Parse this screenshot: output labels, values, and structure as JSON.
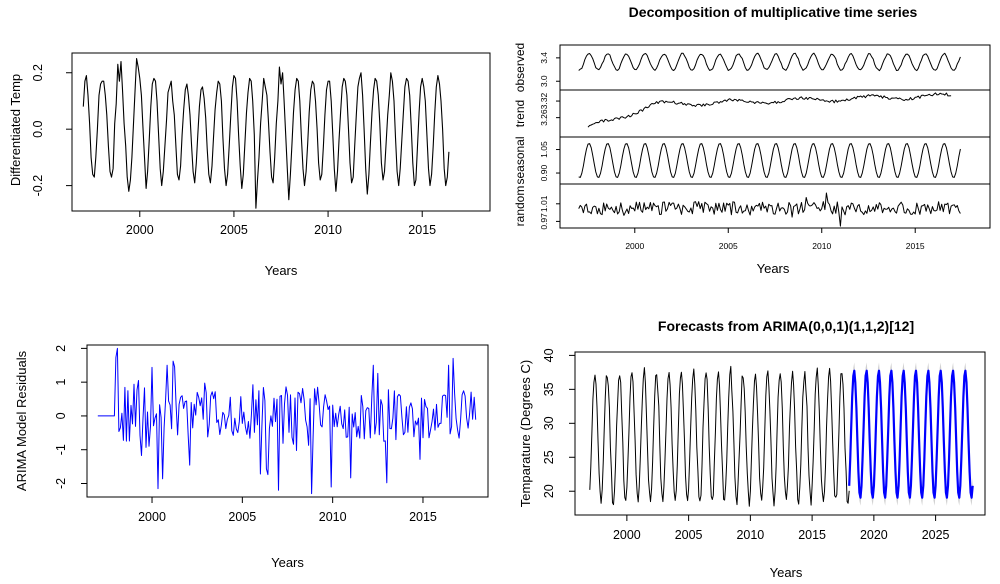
{
  "chart_data": [
    {
      "type": "line",
      "title": "",
      "xlabel": "Years",
      "ylabel": "Differentiated Temp",
      "xlim": [
        1996.4,
        2018.6
      ],
      "ylim": [
        -0.29,
        0.27
      ],
      "x_ticks": [
        "2000",
        "2005",
        "2010",
        "2015"
      ],
      "y_ticks": [
        "-0.2",
        "0.0",
        "0.2"
      ],
      "line_color": "#000000",
      "series": [
        {
          "x_start": 1997.0,
          "x_step": 0.08333,
          "values": [
            0.08,
            0.17,
            0.19,
            0.12,
            0.02,
            -0.1,
            -0.16,
            -0.17,
            -0.1,
            0.0,
            0.12,
            0.16,
            0.17,
            0.17,
            0.12,
            0.05,
            -0.06,
            -0.15,
            -0.17,
            -0.14,
            0.02,
            0.09,
            0.23,
            0.17,
            0.24,
            0.14,
            0.02,
            -0.06,
            -0.17,
            -0.22,
            -0.18,
            -0.1,
            0.02,
            0.14,
            0.25,
            0.22,
            0.18,
            0.12,
            0.01,
            -0.1,
            -0.21,
            -0.15,
            -0.04,
            0.08,
            0.16,
            0.18,
            0.17,
            0.1,
            -0.02,
            -0.14,
            -0.2,
            -0.15,
            -0.06,
            0.03,
            0.13,
            0.15,
            0.17,
            0.1,
            0.05,
            -0.06,
            -0.16,
            -0.18,
            -0.13,
            -0.02,
            0.07,
            0.14,
            0.16,
            0.12,
            0.05,
            -0.06,
            -0.15,
            -0.19,
            -0.12,
            -0.02,
            0.08,
            0.14,
            0.15,
            0.11,
            0.04,
            -0.07,
            -0.16,
            -0.19,
            -0.13,
            -0.03,
            0.07,
            0.13,
            0.17,
            0.16,
            0.1,
            -0.03,
            -0.14,
            -0.2,
            -0.16,
            -0.06,
            0.05,
            0.15,
            0.19,
            0.18,
            0.1,
            -0.02,
            -0.13,
            -0.21,
            -0.16,
            -0.05,
            0.06,
            0.13,
            0.18,
            0.17,
            0.1,
            -0.02,
            -0.28,
            -0.18,
            -0.1,
            0.02,
            0.1,
            0.18,
            0.15,
            0.12,
            0.03,
            -0.08,
            -0.17,
            -0.19,
            -0.1,
            0.02,
            0.1,
            0.22,
            0.16,
            0.2,
            0.1,
            -0.02,
            -0.14,
            -0.25,
            -0.16,
            -0.05,
            0.06,
            0.14,
            0.18,
            0.17,
            0.1,
            -0.03,
            -0.14,
            -0.2,
            -0.15,
            -0.05,
            0.06,
            0.14,
            0.17,
            0.16,
            0.1,
            0.0,
            -0.12,
            -0.18,
            -0.16,
            -0.06,
            0.05,
            0.14,
            0.17,
            0.17,
            0.1,
            -0.02,
            -0.14,
            -0.22,
            -0.15,
            -0.04,
            0.06,
            0.15,
            0.18,
            0.17,
            0.12,
            0.0,
            -0.12,
            -0.19,
            -0.17,
            -0.06,
            0.05,
            0.15,
            0.18,
            0.2,
            0.12,
            0.0,
            -0.14,
            -0.23,
            -0.16,
            -0.05,
            0.06,
            0.14,
            0.18,
            0.17,
            0.12,
            0.02,
            -0.12,
            -0.18,
            -0.15,
            -0.05,
            0.05,
            0.12,
            0.2,
            0.17,
            0.1,
            -0.03,
            -0.15,
            -0.2,
            -0.14,
            -0.04,
            0.06,
            0.15,
            0.18,
            0.17,
            0.12,
            0.01,
            -0.12,
            -0.2,
            -0.18,
            -0.06,
            0.06,
            0.15,
            0.18,
            0.15,
            0.1,
            -0.02,
            -0.14,
            -0.2,
            -0.16,
            -0.06,
            0.06,
            0.15,
            0.19,
            0.16,
            0.1,
            0.0,
            -0.14,
            -0.2,
            -0.17,
            -0.08
          ]
        }
      ]
    },
    {
      "type": "line",
      "title": "Decomposition of multiplicative time series",
      "xlabel": "Years",
      "xlim": [
        1996.0,
        2019.0
      ],
      "x_ticks": [
        "2000",
        "2005",
        "2010",
        "2015"
      ],
      "line_color": "#000000",
      "panels": [
        {
          "name": "observed",
          "ylim": [
            2.85,
            3.62
          ],
          "y_ticks": [
            "3.0",
            "3.4"
          ]
        },
        {
          "name": "trend",
          "ylim": [
            3.19,
            3.36
          ],
          "y_ticks": [
            "3.26",
            "3.32"
          ]
        },
        {
          "name": "seasonal",
          "ylim": [
            0.83,
            1.13
          ],
          "y_ticks": [
            "0.90",
            "1.05"
          ]
        },
        {
          "name": "random",
          "ylim": [
            0.955,
            1.055
          ],
          "y_ticks": [
            "0.97",
            "1.01"
          ]
        }
      ]
    },
    {
      "type": "line",
      "title": "",
      "xlabel": "Years",
      "ylabel": "ARIMA Model Residuals",
      "xlim": [
        1996.4,
        2018.6
      ],
      "ylim": [
        -2.4,
        2.1
      ],
      "x_ticks": [
        "2000",
        "2005",
        "2010",
        "2015"
      ],
      "y_ticks": [
        "-2",
        "-1",
        "0",
        "1",
        "2"
      ],
      "line_color": "#0000ff"
    },
    {
      "type": "line",
      "title": "Forecasts from ARIMA(0,0,1)(1,1,2)[12]",
      "xlabel": "Years",
      "ylabel": "Temparature (Degrees C)",
      "xlim": [
        1995.8,
        2029.0
      ],
      "ylim": [
        16.5,
        40.5
      ],
      "x_ticks": [
        "2000",
        "2005",
        "2010",
        "2015",
        "2020",
        "2025"
      ],
      "y_ticks": [
        "20",
        "25",
        "30",
        "35",
        "40"
      ],
      "series": [
        {
          "name": "observed",
          "color": "#000000",
          "x_start": 1997.0,
          "x_end": 2018.0,
          "low": 18.5,
          "high": 37.5
        },
        {
          "name": "forecast",
          "color": "#0000ff",
          "x_start": 2018.0,
          "x_end": 2028.0,
          "low": 19.0,
          "high": 37.8
        },
        {
          "name": "interval",
          "color": "#bebebe",
          "low": 17.8,
          "high": 39.0
        }
      ]
    }
  ]
}
